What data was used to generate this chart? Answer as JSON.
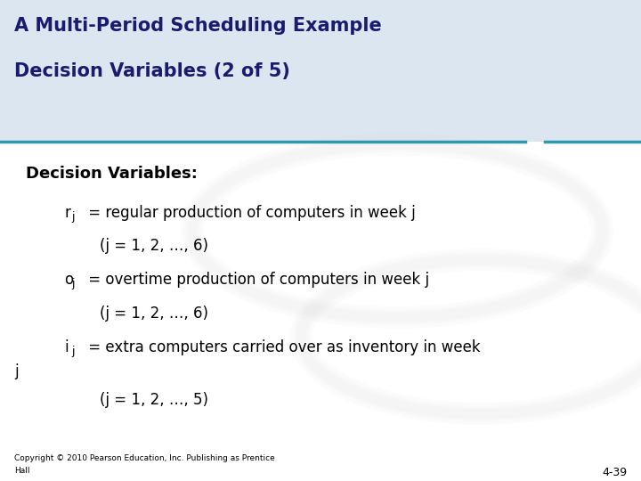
{
  "title_line1": "A Multi-Period Scheduling Example",
  "title_line2": "Decision Variables (2 of 5)",
  "header_bg": "#dce6f1",
  "header_line_color": "#2e9aaf",
  "body_bg": "#ffffff",
  "section_label": "Decision Variables:",
  "footer_line1": "Copyright © 2010 Pearson Education, Inc. Publishing as Prentice",
  "footer_line2": "Hall",
  "footer_right": "4-39",
  "swirl_color": "#d0d0d0",
  "title_fontsize": 15,
  "body_fontsize": 12,
  "section_fontsize": 13
}
